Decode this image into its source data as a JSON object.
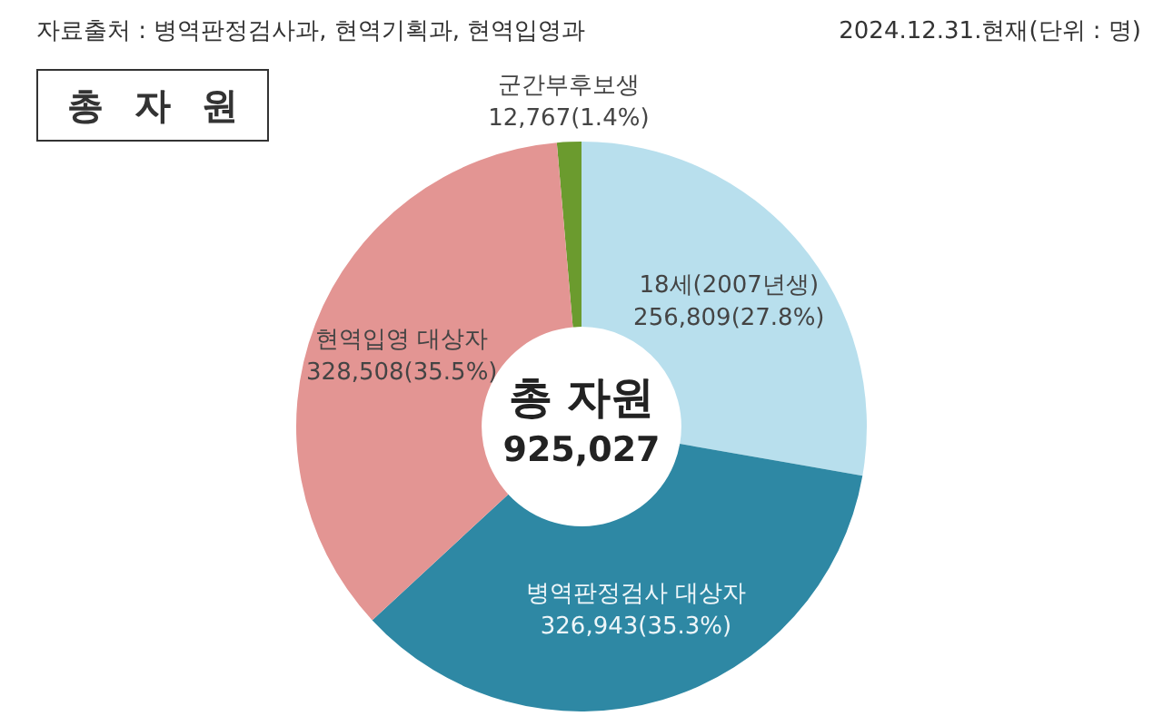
{
  "chart_data": {
    "type": "donut",
    "title": "총 자 원",
    "categories": [
      "군간부후보생",
      "18세(2007년생)",
      "병역판정검사 대상자",
      "현역입영 대상자"
    ],
    "values": [
      12767,
      256809,
      326943,
      328508
    ],
    "colors": [
      "#6b9b2e",
      "#b8dfed",
      "#2e88a4",
      "#e39593"
    ],
    "value_labels": [
      "12,767(1.4%)",
      "256,809(27.8%)",
      "326,943(35.3%)",
      "328,508(35.5%)"
    ],
    "annotations": [
      "자료출처 : 병역판정검사과, 현역기획과, 현역입영과",
      "2024.12.31.현재(단위 : 명)",
      "총 자원",
      "925,027"
    ],
    "legend": false
  }
}
